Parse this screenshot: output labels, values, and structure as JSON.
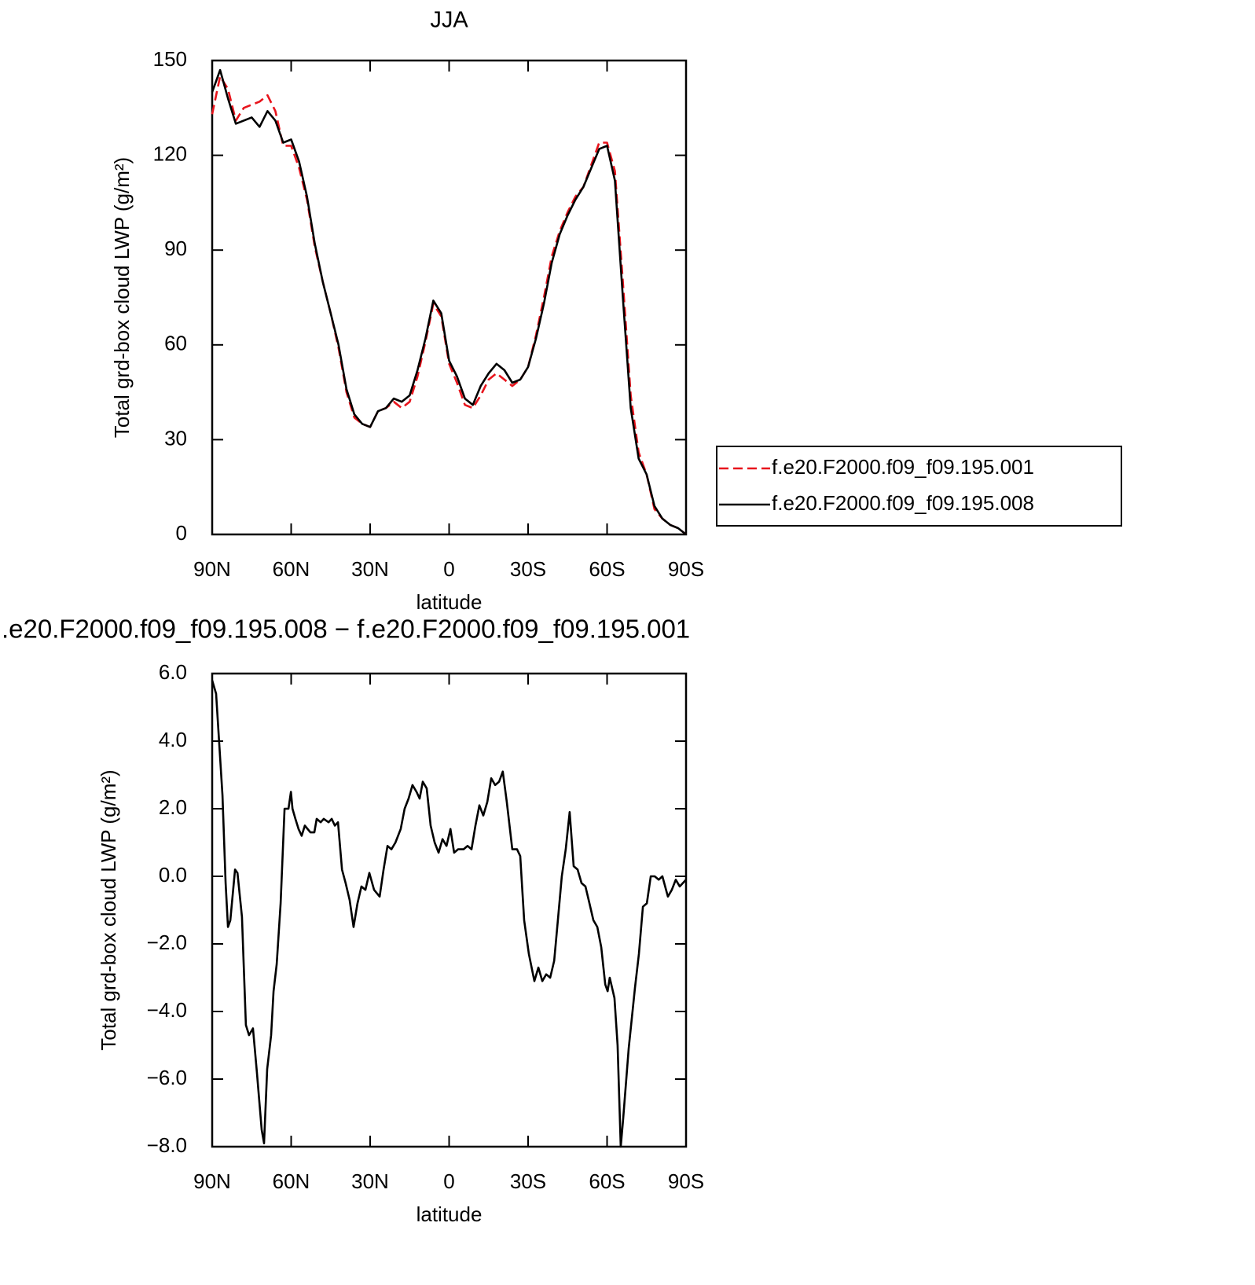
{
  "chart_data": [
    {
      "type": "line",
      "title": "JJA",
      "xlabel": "latitude",
      "ylabel": "Total grd-box cloud LWP (g/m²)",
      "x": [
        90,
        87,
        84,
        81,
        78,
        75,
        72,
        69,
        66,
        63,
        60,
        57,
        54,
        51,
        48,
        45,
        42,
        39,
        36,
        33,
        30,
        27,
        24,
        21,
        18,
        15,
        12,
        9,
        6,
        3,
        0,
        -3,
        -6,
        -9,
        -12,
        -15,
        -18,
        -21,
        -24,
        -27,
        -30,
        -33,
        -36,
        -39,
        -42,
        -45,
        -48,
        -51,
        -54,
        -57,
        -60,
        -63,
        -66,
        -69,
        -72,
        -75,
        -78,
        -81,
        -84,
        -87,
        -90
      ],
      "series": [
        {
          "name": "f.e20.F2000.f09_f09.195.001",
          "color": "#e8141c",
          "linestyle": "dashed",
          "values": [
            133,
            145,
            141,
            131,
            135,
            136,
            137,
            139,
            134,
            123,
            123,
            116,
            106,
            91,
            80,
            70,
            59,
            45,
            37,
            35,
            34,
            39,
            40,
            42,
            40,
            42,
            50,
            61,
            73,
            69,
            54,
            48,
            41,
            40,
            44,
            49,
            51,
            49,
            47,
            49,
            53,
            63,
            75,
            88,
            96,
            102,
            107,
            110,
            117,
            124,
            124,
            115,
            80,
            44,
            26,
            19,
            8,
            5,
            3,
            2,
            0
          ]
        },
        {
          "name": "f.e20.F2000.f09_f09.195.008",
          "color": "#000000",
          "linestyle": "solid",
          "values": [
            140,
            147,
            138,
            130,
            131,
            132,
            129,
            134,
            131,
            124,
            125,
            118,
            107,
            92,
            80,
            70,
            60,
            46,
            38,
            35,
            34,
            39,
            40,
            43,
            42,
            44,
            52,
            62,
            74,
            70,
            55,
            50,
            43,
            41,
            47,
            51,
            54,
            52,
            48,
            49,
            53,
            62,
            73,
            86,
            95,
            101,
            106,
            110,
            116,
            122,
            123,
            112,
            75,
            40,
            24,
            19,
            9,
            5,
            3,
            2,
            0
          ]
        }
      ],
      "xlim": [
        90,
        -90
      ],
      "xticks": [
        {
          "value": 90,
          "label": "90N"
        },
        {
          "value": 60,
          "label": "60N"
        },
        {
          "value": 30,
          "label": "30N"
        },
        0,
        {
          "value": -30,
          "label": "30S"
        },
        {
          "value": -60,
          "label": "60S"
        },
        {
          "value": -90,
          "label": "90S"
        }
      ],
      "ylim": [
        0,
        150
      ],
      "yticks": [
        0,
        30,
        60,
        90,
        120,
        150
      ],
      "legend": "right"
    },
    {
      "type": "line",
      "title": ".e20.F2000.f09_f09.195.008 − f.e20.F2000.f09_f09.195.001",
      "xlabel": "latitude",
      "ylabel": "Total grd-box cloud LWP (g/m²)",
      "x": [
        90.0,
        88.5,
        86.1,
        84.9,
        84.0,
        83.1,
        81.3,
        80.4,
        78.7,
        77.2,
        76.0,
        74.5,
        73.0,
        71.2,
        70.3,
        69.1,
        67.6,
        66.7,
        65.5,
        64.0,
        62.5,
        61.0,
        60.1,
        59.5,
        58.4,
        57.2,
        56.0,
        54.8,
        52.7,
        51.2,
        50.3,
        48.8,
        47.6,
        45.8,
        44.6,
        43.4,
        42.2,
        40.7,
        39.3,
        37.8,
        36.3,
        34.8,
        33.3,
        31.8,
        30.3,
        28.5,
        26.4,
        24.9,
        23.4,
        21.9,
        20.4,
        18.4,
        16.9,
        15.4,
        13.9,
        12.4,
        11.2,
        10.0,
        8.5,
        7.0,
        5.5,
        4.0,
        2.5,
        1.0,
        -0.5,
        -1.9,
        -3.4,
        -5.5,
        -7.0,
        -8.5,
        -10.0,
        -11.5,
        -13.0,
        -14.5,
        -16.0,
        -17.5,
        -19.0,
        -20.4,
        -21.9,
        -24.0,
        -25.8,
        -27.0,
        -28.5,
        -30.3,
        -32.4,
        -33.9,
        -35.4,
        -36.9,
        -38.4,
        -39.9,
        -41.3,
        -42.8,
        -44.3,
        -45.8,
        -47.3,
        -48.8,
        -50.3,
        -51.8,
        -53.3,
        -54.8,
        -56.3,
        -57.8,
        -59.3,
        -60.2,
        -61.0,
        -62.8,
        -64.0,
        -65.2,
        -66.1,
        -68.2,
        -70.6,
        -72.1,
        -73.6,
        -75.1,
        -76.6,
        -78.1,
        -79.6,
        -81.0,
        -83.1,
        -84.6,
        -86.1,
        -87.6,
        -90.0
      ],
      "series": [
        {
          "color": "#000000",
          "linestyle": "solid",
          "values": [
            5.8,
            5.4,
            2.4,
            -0.2,
            -1.5,
            -1.3,
            0.2,
            0.1,
            -1.2,
            -4.4,
            -4.7,
            -4.5,
            -5.8,
            -7.5,
            -7.9,
            -5.7,
            -4.7,
            -3.4,
            -2.6,
            -0.8,
            2.0,
            2.0,
            2.5,
            2.0,
            1.7,
            1.4,
            1.2,
            1.5,
            1.3,
            1.3,
            1.7,
            1.6,
            1.7,
            1.6,
            1.7,
            1.5,
            1.6,
            0.2,
            -0.2,
            -0.7,
            -1.5,
            -0.8,
            -0.3,
            -0.4,
            0.1,
            -0.4,
            -0.6,
            0.2,
            0.9,
            0.8,
            1.0,
            1.4,
            2.0,
            2.3,
            2.7,
            2.5,
            2.3,
            2.8,
            2.6,
            1.5,
            1.0,
            0.7,
            1.1,
            0.9,
            1.4,
            0.7,
            0.8,
            0.8,
            0.9,
            0.8,
            1.5,
            2.1,
            1.8,
            2.2,
            2.9,
            2.7,
            2.8,
            3.1,
            2.2,
            0.8,
            0.8,
            0.6,
            -1.3,
            -2.3,
            -3.1,
            -2.7,
            -3.1,
            -2.9,
            -3.0,
            -2.5,
            -1.3,
            0.0,
            0.8,
            1.9,
            0.3,
            0.2,
            -0.2,
            -0.3,
            -0.8,
            -1.3,
            -1.5,
            -2.1,
            -3.2,
            -3.4,
            -3.0,
            -3.6,
            -5.0,
            -8.0,
            -7.2,
            -5.1,
            -3.3,
            -2.3,
            -0.9,
            -0.8,
            0.0,
            0.0,
            -0.1,
            0.0,
            -0.6,
            -0.4,
            -0.1,
            -0.3,
            -0.1
          ]
        }
      ],
      "xlim": [
        90,
        -90
      ],
      "xticks": [
        {
          "value": 90,
          "label": "90N"
        },
        {
          "value": 60,
          "label": "60N"
        },
        {
          "value": 30,
          "label": "30N"
        },
        0,
        {
          "value": -30,
          "label": "30S"
        },
        {
          "value": -60,
          "label": "60S"
        },
        {
          "value": -90,
          "label": "90S"
        }
      ],
      "ylim": [
        -8,
        6
      ],
      "yticks": [
        {
          "value": -8,
          "label": "−8.0"
        },
        {
          "value": -6,
          "label": "−6.0"
        },
        {
          "value": -4,
          "label": "−4.0"
        },
        {
          "value": -2,
          "label": "−2.0"
        },
        {
          "value": 0,
          "label": "0.0"
        },
        {
          "value": 2,
          "label": "2.0"
        },
        {
          "value": 4,
          "label": "4.0"
        },
        {
          "value": 6,
          "label": "6.0"
        }
      ]
    }
  ]
}
